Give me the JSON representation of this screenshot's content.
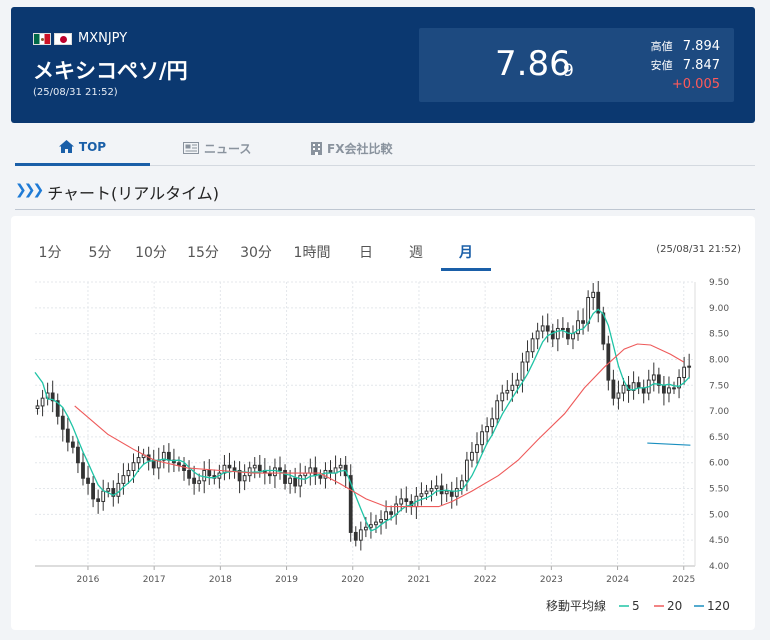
{
  "header": {
    "symbol": "MXNJPY",
    "name": "メキシコペソ/円",
    "timestamp": "(25/08/31 21:52)",
    "price_main": "7.86",
    "price_sub": "9",
    "high_label": "高値",
    "high_value": "7.894",
    "low_label": "安値",
    "low_value": "7.847",
    "change": "+0.005",
    "colors": {
      "bg": "#0b3870",
      "change": "#ff5a5a"
    }
  },
  "tabs": [
    {
      "label": "TOP",
      "icon": "home-icon"
    },
    {
      "label": "ニュース",
      "icon": "newspaper-icon"
    },
    {
      "label": "FX会社比較",
      "icon": "building-icon"
    }
  ],
  "section": {
    "title": "チャート(リアルタイム)"
  },
  "periods": [
    "1分",
    "5分",
    "10分",
    "15分",
    "30分",
    "1時間",
    "日",
    "週",
    "月"
  ],
  "active_period": "月",
  "chart_time": "(25/08/31 21:52)",
  "chart_data": {
    "type": "candlestick",
    "x_ticks": [
      "2016",
      "2017",
      "2018",
      "2019",
      "2020",
      "2021",
      "2022",
      "2023",
      "2024",
      "2025"
    ],
    "y_ticks": [
      "4.00",
      "4.50",
      "5.00",
      "5.50",
      "6.00",
      "6.50",
      "7.00",
      "7.50",
      "8.00",
      "8.50",
      "9.00",
      "9.50"
    ],
    "ylim": [
      4.0,
      9.5
    ],
    "x_start": 2015.7,
    "x_end": 2025.67,
    "legend_title": "移動平均線",
    "colors": {
      "ma5": "#1fc4a6",
      "ma20": "#ee5a5a",
      "ma120": "#1a8fbf",
      "candle": "#333333"
    },
    "series": [
      {
        "name": "5",
        "key": "ma5"
      },
      {
        "name": "20",
        "key": "ma20"
      },
      {
        "name": "120",
        "key": "ma120"
      }
    ],
    "closes": [
      7.1,
      7.25,
      7.35,
      7.2,
      6.9,
      6.65,
      6.4,
      6.3,
      6.0,
      5.7,
      5.6,
      5.3,
      5.25,
      5.45,
      5.5,
      5.35,
      5.6,
      5.75,
      5.85,
      6.0,
      6.1,
      6.15,
      6.05,
      5.9,
      6.05,
      6.2,
      6.05,
      6.0,
      5.95,
      5.85,
      5.7,
      5.6,
      5.65,
      5.85,
      5.75,
      5.7,
      5.8,
      5.95,
      5.9,
      5.85,
      5.65,
      5.75,
      5.9,
      5.95,
      5.85,
      5.8,
      5.75,
      5.9,
      5.85,
      5.6,
      5.7,
      5.55,
      5.75,
      5.8,
      5.9,
      5.75,
      5.7,
      5.85,
      5.8,
      5.9,
      5.95,
      5.75,
      4.65,
      4.5,
      4.7,
      4.75,
      4.8,
      4.85,
      4.9,
      5.05,
      5.0,
      5.2,
      5.3,
      5.25,
      5.15,
      5.35,
      5.4,
      5.45,
      5.5,
      5.55,
      5.4,
      5.45,
      5.35,
      5.5,
      5.65,
      6.05,
      6.2,
      6.35,
      6.6,
      6.7,
      6.85,
      7.2,
      7.35,
      7.4,
      7.5,
      7.6,
      7.95,
      8.15,
      8.4,
      8.55,
      8.65,
      8.55,
      8.4,
      8.6,
      8.6,
      8.4,
      8.5,
      8.75,
      8.7,
      9.2,
      9.3,
      8.9,
      8.3,
      7.6,
      7.25,
      7.35,
      7.5,
      7.4,
      7.55,
      7.45,
      7.35,
      7.6,
      7.7,
      7.5,
      7.35,
      7.45,
      7.45,
      7.65,
      7.85,
      7.87
    ],
    "ma20": [
      [
        2016.3,
        7.1
      ],
      [
        2016.8,
        6.55
      ],
      [
        2017.2,
        6.25
      ],
      [
        2017.5,
        6.05
      ],
      [
        2018.0,
        5.9
      ],
      [
        2018.5,
        5.85
      ],
      [
        2019.0,
        5.8
      ],
      [
        2019.5,
        5.8
      ],
      [
        2020.0,
        5.8
      ],
      [
        2020.3,
        5.6
      ],
      [
        2020.7,
        5.3
      ],
      [
        2021.0,
        5.15
      ],
      [
        2021.5,
        5.15
      ],
      [
        2021.8,
        5.15
      ],
      [
        2022.0,
        5.25
      ],
      [
        2022.3,
        5.45
      ],
      [
        2022.7,
        5.75
      ],
      [
        2023.0,
        6.05
      ],
      [
        2023.3,
        6.45
      ],
      [
        2023.7,
        6.95
      ],
      [
        2024.0,
        7.45
      ],
      [
        2024.3,
        7.85
      ],
      [
        2024.6,
        8.2
      ],
      [
        2024.8,
        8.3
      ],
      [
        2025.0,
        8.28
      ],
      [
        2025.3,
        8.1
      ],
      [
        2025.5,
        7.95
      ]
    ],
    "ma120": [
      [
        2024.95,
        6.38
      ],
      [
        2025.6,
        6.34
      ]
    ]
  }
}
